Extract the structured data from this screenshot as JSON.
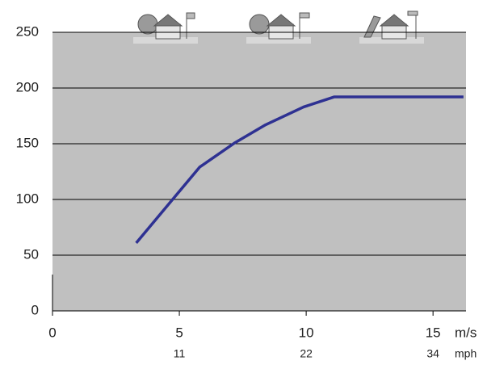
{
  "chart_data": {
    "type": "line",
    "x_unit": "m/s",
    "x2_unit": "mph",
    "series": [
      {
        "color": "#2e3192",
        "x": [
          3.3,
          5.8,
          7.2,
          8.4,
          9.9,
          11.1,
          16.2
        ],
        "values": [
          61,
          129,
          151,
          167,
          183,
          192,
          192
        ]
      }
    ],
    "xlim": [
      0,
      16.3
    ],
    "xticks": [
      0,
      5,
      10,
      15
    ],
    "x2ticks": [
      {
        "value": 5,
        "label": "11"
      },
      {
        "value": 10,
        "label": "22"
      },
      {
        "value": 15,
        "label": "34"
      }
    ],
    "ylim": [
      0,
      250
    ],
    "yticks": [
      0,
      50,
      100,
      150,
      200,
      250
    ],
    "grid": true,
    "background": "#c0c0c0"
  }
}
